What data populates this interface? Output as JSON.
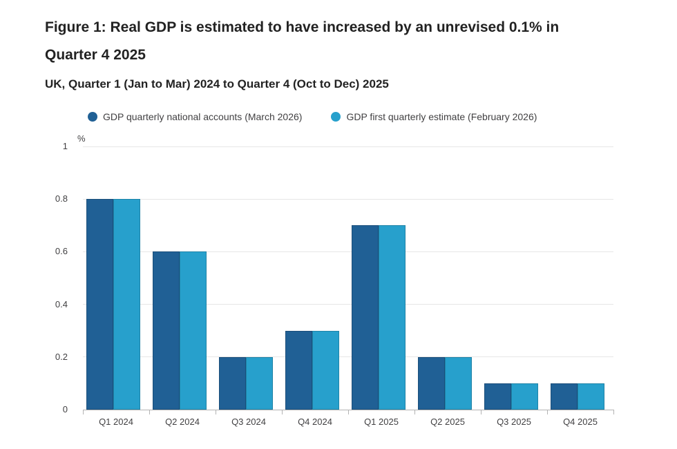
{
  "figure": {
    "title": "Figure 1: Real GDP is estimated to have increased by an unrevised 0.1% in Quarter 4 2025",
    "subtitle": "UK, Quarter 1 (Jan to Mar) 2024 to Quarter 4 (Oct to Dec) 2025"
  },
  "colors": {
    "series1": "#206095",
    "series2": "#27A0CC",
    "grid": "#e6e6e6",
    "axis": "#b3b3b3",
    "axis_text": "#414042",
    "title_text": "#222222"
  },
  "chart_data": {
    "type": "bar",
    "unit_label": "%",
    "categories": [
      "Q1 2024",
      "Q2 2024",
      "Q3 2024",
      "Q4 2024",
      "Q1 2025",
      "Q2 2025",
      "Q3 2025",
      "Q4 2025"
    ],
    "series": [
      {
        "name": "GDP quarterly national accounts (March 2026)",
        "color": "#206095",
        "values": [
          0.8,
          0.6,
          0.2,
          0.3,
          0.7,
          0.2,
          0.1,
          0.1
        ]
      },
      {
        "name": "GDP first quarterly estimate (February 2026)",
        "color": "#27A0CC",
        "values": [
          0.8,
          0.6,
          0.2,
          0.3,
          0.7,
          0.2,
          0.1,
          0.1
        ]
      }
    ],
    "ylim": [
      0,
      1
    ],
    "ytick_step": 0.2,
    "ytick_labels": [
      "0",
      "0.2",
      "0.4",
      "0.6",
      "0.8",
      "1"
    ],
    "grid": true,
    "legend_position": "top"
  }
}
